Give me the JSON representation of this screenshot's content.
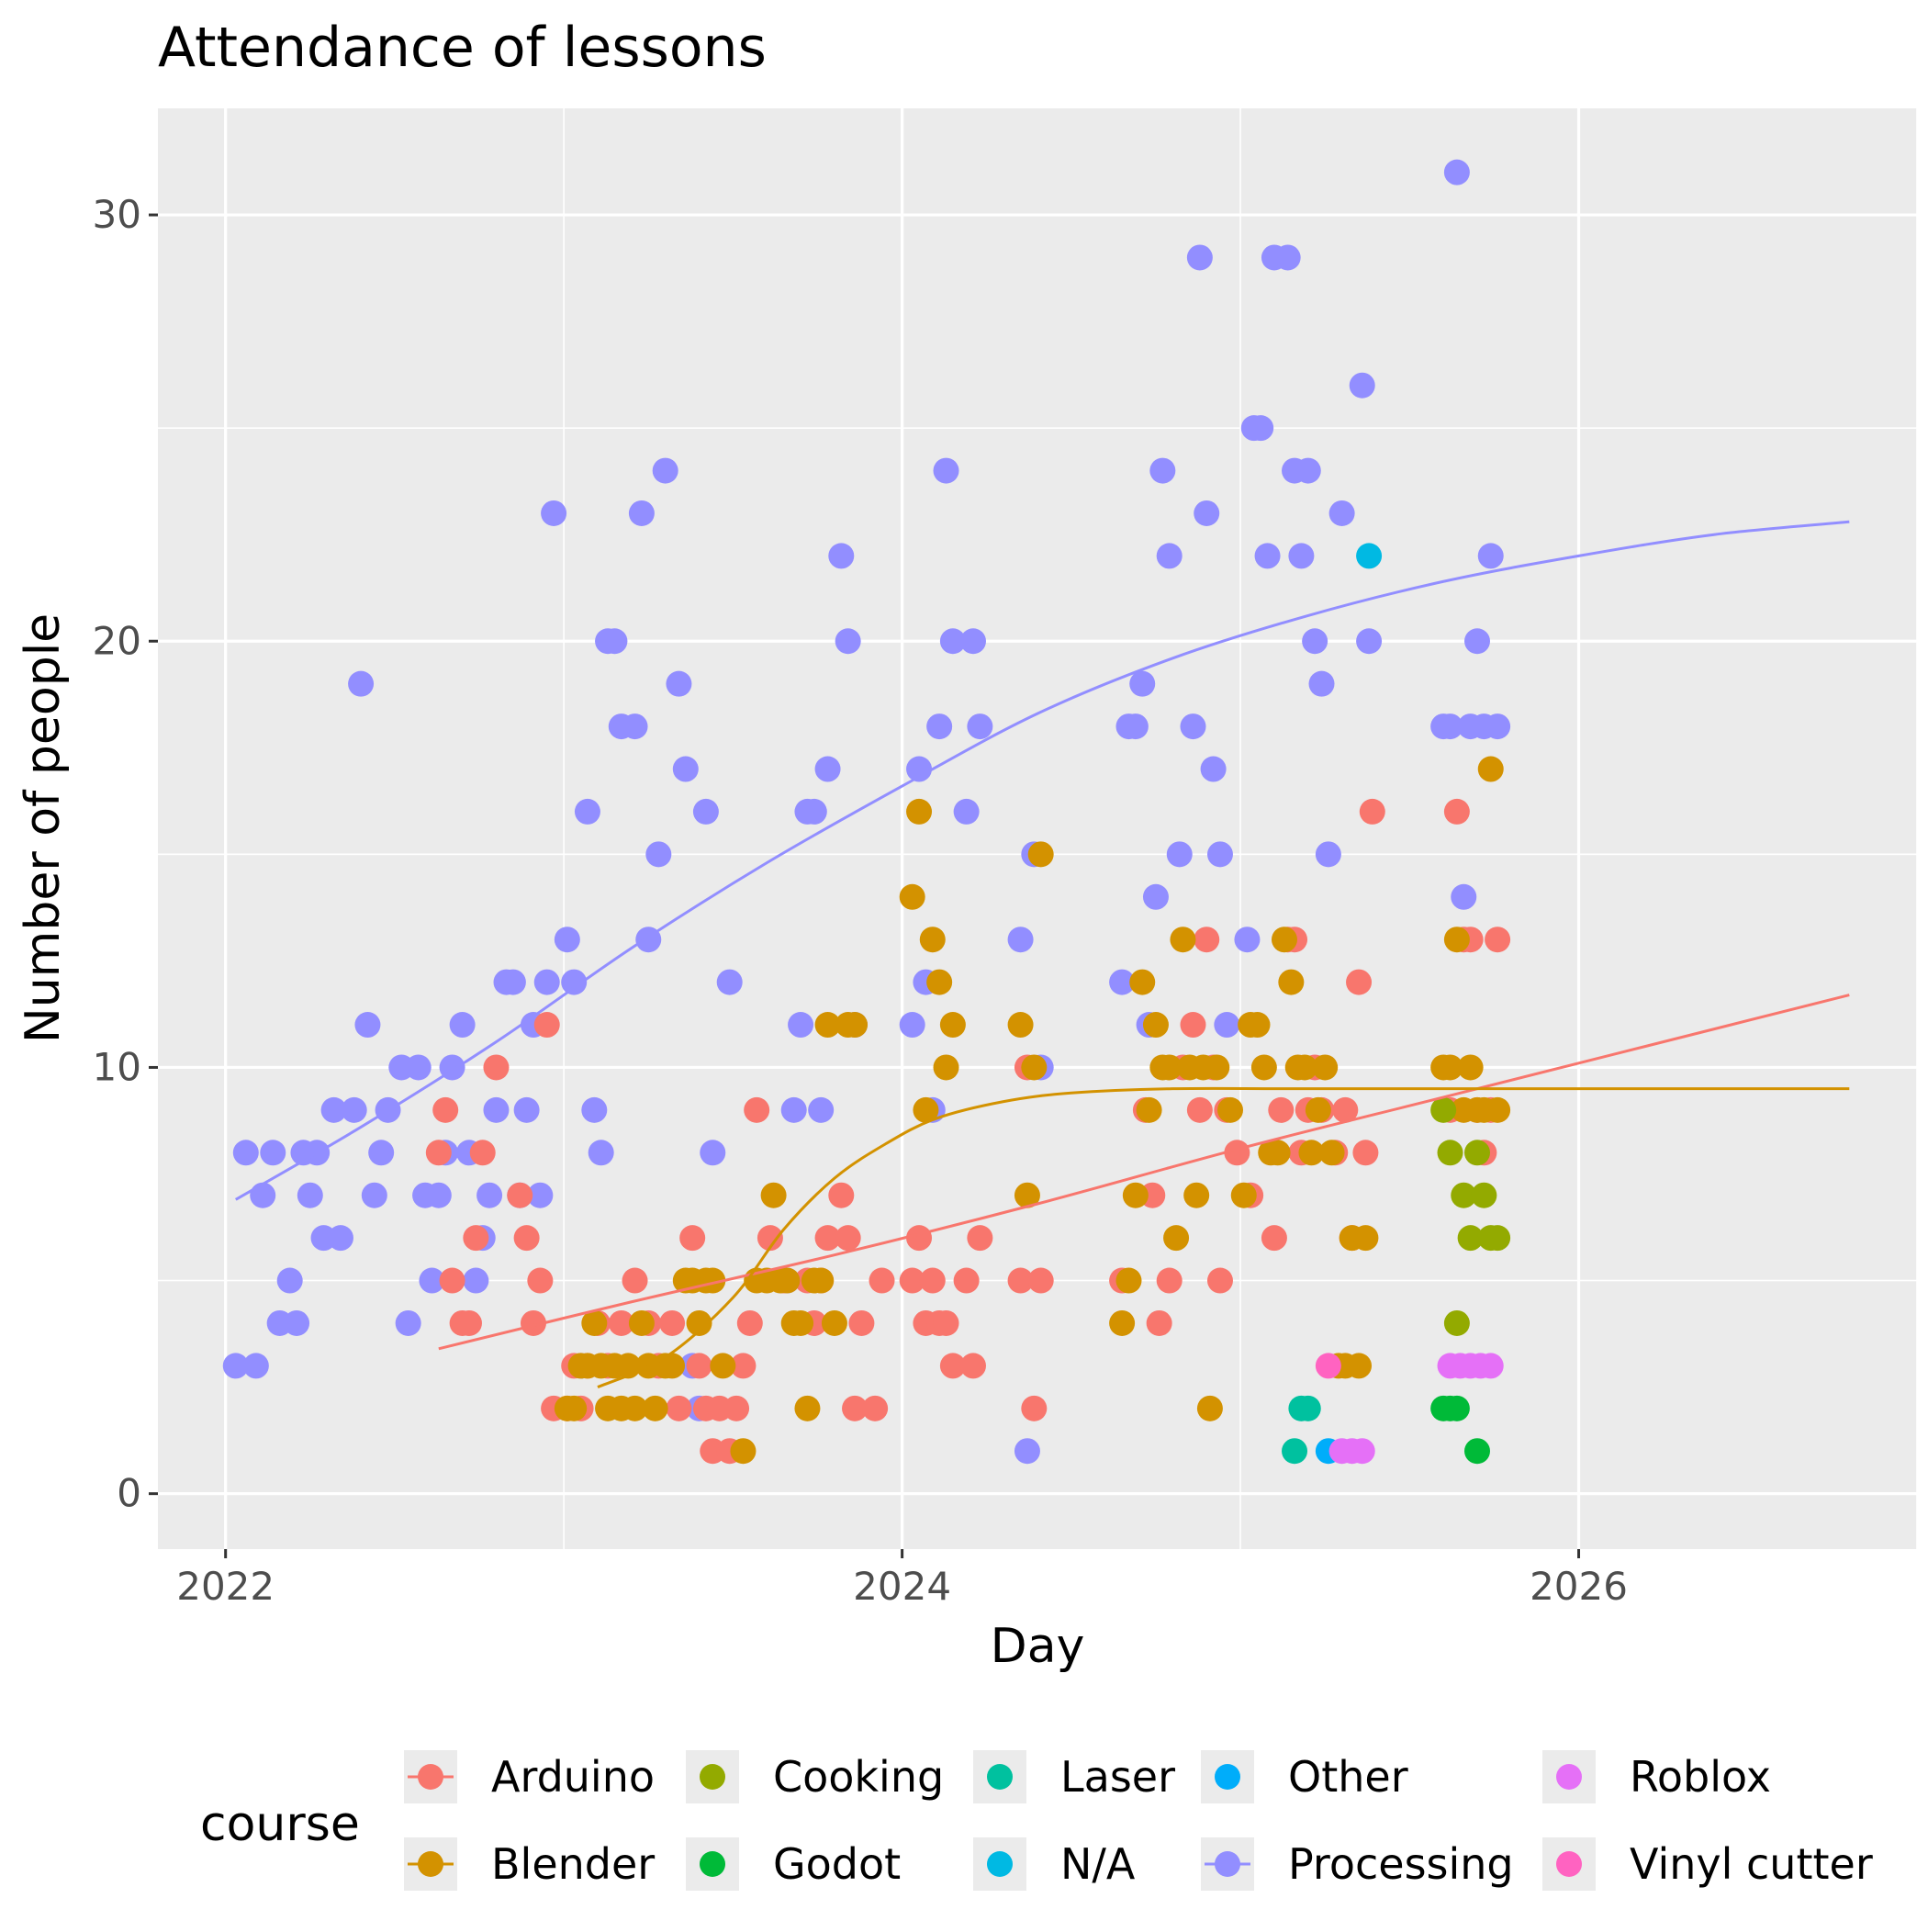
{
  "chart_data": {
    "type": "scatter",
    "title": "Attendance of lessons",
    "xlabel": "Day",
    "ylabel": "Number of people",
    "xlim": [
      2021.8,
      2027.0
    ],
    "ylim": [
      -1.3,
      32.5
    ],
    "x_ticks": [
      2022,
      2024,
      2026
    ],
    "x_tick_labels": [
      "2022",
      "2024",
      "2026"
    ],
    "y_ticks": [
      0,
      10,
      20,
      30
    ],
    "y_tick_labels": [
      "0",
      "10",
      "20",
      "30"
    ],
    "grid": true,
    "legend": {
      "title": "course",
      "placement": "bottom",
      "items": [
        {
          "label": "Arduino",
          "color": "#F8766D",
          "line": true
        },
        {
          "label": "Blender",
          "color": "#D39200",
          "line": true
        },
        {
          "label": "Cooking",
          "color": "#93AA00",
          "line": false
        },
        {
          "label": "Godot",
          "color": "#00BA38",
          "line": false
        },
        {
          "label": "Laser",
          "color": "#00C19F",
          "line": false
        },
        {
          "label": "N/A",
          "color": "#00B9E3",
          "line": false
        },
        {
          "label": "Other",
          "color": "#00ADFA",
          "line": false
        },
        {
          "label": "Processing",
          "color": "#928EFF",
          "line": true
        },
        {
          "label": "Roblox",
          "color": "#E570F7",
          "line": false
        },
        {
          "label": "Vinyl cutter",
          "color": "#FF63C1",
          "line": false
        }
      ]
    },
    "series": [
      {
        "name": "Processing",
        "color": "#928EFF",
        "x": [
          2022.03,
          2022.06,
          2022.09,
          2022.11,
          2022.14,
          2022.16,
          2022.19,
          2022.21,
          2022.23,
          2022.25,
          2022.27,
          2022.29,
          2022.32,
          2022.34,
          2022.38,
          2022.4,
          2022.42,
          2022.44,
          2022.46,
          2022.48,
          2022.52,
          2022.54,
          2022.57,
          2022.59,
          2022.61,
          2022.63,
          2022.65,
          2022.67,
          2022.7,
          2022.72,
          2022.74,
          2022.76,
          2022.78,
          2022.8,
          2022.83,
          2022.85,
          2022.87,
          2022.89,
          2022.91,
          2022.93,
          2022.95,
          2022.97,
          2023.01,
          2023.03,
          2023.05,
          2023.07,
          2023.09,
          2023.11,
          2023.13,
          2023.15,
          2023.17,
          2023.21,
          2023.23,
          2023.25,
          2023.28,
          2023.3,
          2023.34,
          2023.36,
          2023.38,
          2023.4,
          2023.42,
          2023.44,
          2023.49,
          2023.66,
          2023.68,
          2023.7,
          2023.72,
          2023.74,
          2023.76,
          2023.78,
          2023.82,
          2023.84,
          2023.86,
          2024.03,
          2024.05,
          2024.07,
          2024.09,
          2024.11,
          2024.13,
          2024.15,
          2024.19,
          2024.21,
          2024.23,
          2024.35,
          2024.37,
          2024.39,
          2024.41,
          2024.65,
          2024.67,
          2024.69,
          2024.71,
          2024.73,
          2024.75,
          2024.77,
          2024.79,
          2024.82,
          2024.86,
          2024.88,
          2024.9,
          2024.92,
          2024.94,
          2024.96,
          2025.02,
          2025.04,
          2025.06,
          2025.08,
          2025.1,
          2025.14,
          2025.16,
          2025.18,
          2025.2,
          2025.22,
          2025.24,
          2025.26,
          2025.3,
          2025.36,
          2025.38,
          2025.6,
          2025.62,
          2025.64,
          2025.66,
          2025.68,
          2025.7,
          2025.72,
          2025.74,
          2025.76
        ],
        "y": [
          3,
          8,
          3,
          7,
          8,
          4,
          5,
          4,
          8,
          7,
          8,
          6,
          9,
          6,
          9,
          19,
          11,
          7,
          8,
          9,
          10,
          4,
          10,
          7,
          5,
          7,
          8,
          10,
          11,
          8,
          5,
          6,
          7,
          9,
          12,
          12,
          7,
          9,
          11,
          7,
          12,
          23,
          13,
          12,
          3,
          16,
          9,
          8,
          20,
          20,
          18,
          18,
          23,
          13,
          15,
          24,
          19,
          17,
          3,
          2,
          16,
          8,
          12,
          5,
          9,
          11,
          16,
          16,
          9,
          17,
          22,
          20,
          11,
          11,
          17,
          12,
          9,
          18,
          24,
          20,
          16,
          20,
          18,
          13,
          1,
          15,
          10,
          12,
          18,
          18,
          19,
          11,
          14,
          24,
          22,
          15,
          18,
          29,
          23,
          17,
          15,
          11,
          13,
          25,
          25,
          22,
          29,
          29,
          24,
          22,
          24,
          20,
          19,
          15,
          23,
          26,
          20,
          18,
          18,
          31,
          14,
          18,
          20,
          18,
          22,
          18
        ]
      },
      {
        "name": "Arduino",
        "color": "#F8766D",
        "x": [
          2022.63,
          2022.65,
          2022.67,
          2022.7,
          2022.72,
          2022.74,
          2022.76,
          2022.8,
          2022.87,
          2022.89,
          2022.91,
          2022.93,
          2022.95,
          2022.97,
          2023.01,
          2023.03,
          2023.05,
          2023.07,
          2023.1,
          2023.13,
          2023.17,
          2023.21,
          2023.25,
          2023.28,
          2023.32,
          2023.34,
          2023.38,
          2023.4,
          2023.42,
          2023.44,
          2023.46,
          2023.49,
          2023.51,
          2023.53,
          2023.55,
          2023.57,
          2023.61,
          2023.65,
          2023.72,
          2023.74,
          2023.76,
          2023.78,
          2023.82,
          2023.84,
          2023.86,
          2023.88,
          2023.92,
          2023.94,
          2024.03,
          2024.05,
          2024.07,
          2024.09,
          2024.11,
          2024.13,
          2024.15,
          2024.19,
          2024.21,
          2024.23,
          2024.35,
          2024.37,
          2024.39,
          2024.41,
          2024.65,
          2024.72,
          2024.74,
          2024.76,
          2024.79,
          2024.83,
          2024.86,
          2024.88,
          2024.9,
          2024.92,
          2024.94,
          2024.96,
          2024.99,
          2025.03,
          2025.1,
          2025.12,
          2025.14,
          2025.16,
          2025.18,
          2025.2,
          2025.22,
          2025.24,
          2025.28,
          2025.31,
          2025.33,
          2025.35,
          2025.37,
          2025.39,
          2025.62,
          2025.64,
          2025.66,
          2025.68,
          2025.7,
          2025.72,
          2025.74,
          2025.76
        ],
        "y": [
          8,
          9,
          5,
          4,
          4,
          6,
          8,
          10,
          7,
          6,
          4,
          5,
          11,
          2,
          2,
          3,
          2,
          3,
          4,
          3,
          4,
          5,
          4,
          3,
          4,
          2,
          6,
          3,
          2,
          1,
          2,
          1,
          2,
          3,
          4,
          9,
          6,
          5,
          5,
          4,
          5,
          6,
          7,
          6,
          2,
          4,
          2,
          5,
          5,
          6,
          4,
          5,
          4,
          4,
          3,
          5,
          3,
          6,
          5,
          10,
          2,
          5,
          5,
          9,
          7,
          4,
          5,
          10,
          11,
          9,
          13,
          10,
          5,
          9,
          8,
          7,
          6,
          9,
          13,
          13,
          8,
          9,
          10,
          9,
          8,
          9,
          6,
          12,
          8,
          16,
          9,
          16,
          13,
          13,
          9,
          8,
          9,
          13
        ]
      },
      {
        "name": "Blender",
        "color": "#D39200",
        "x": [
          2023.01,
          2023.03,
          2023.05,
          2023.07,
          2023.09,
          2023.11,
          2023.13,
          2023.15,
          2023.17,
          2023.19,
          2023.21,
          2023.23,
          2023.25,
          2023.27,
          2023.3,
          2023.32,
          2023.36,
          2023.38,
          2023.4,
          2023.42,
          2023.44,
          2023.47,
          2023.53,
          2023.57,
          2023.6,
          2023.62,
          2023.64,
          2023.66,
          2023.68,
          2023.7,
          2023.72,
          2023.74,
          2023.76,
          2023.78,
          2023.8,
          2023.84,
          2023.86,
          2024.03,
          2024.05,
          2024.07,
          2024.09,
          2024.11,
          2024.13,
          2024.15,
          2024.35,
          2024.37,
          2024.39,
          2024.41,
          2024.65,
          2024.67,
          2024.69,
          2024.71,
          2024.73,
          2024.75,
          2024.77,
          2024.79,
          2024.81,
          2024.83,
          2024.85,
          2024.87,
          2024.89,
          2024.91,
          2024.93,
          2024.97,
          2025.01,
          2025.03,
          2025.05,
          2025.07,
          2025.09,
          2025.11,
          2025.13,
          2025.15,
          2025.17,
          2025.19,
          2025.21,
          2025.23,
          2025.25,
          2025.27,
          2025.29,
          2025.31,
          2025.33,
          2025.35,
          2025.37,
          2025.6,
          2025.62,
          2025.64,
          2025.66,
          2025.68,
          2025.7,
          2025.72,
          2025.74,
          2025.76
        ],
        "y": [
          2,
          2,
          3,
          3,
          4,
          3,
          2,
          3,
          2,
          3,
          2,
          4,
          3,
          2,
          3,
          3,
          5,
          5,
          4,
          5,
          5,
          3,
          1,
          5,
          5,
          7,
          5,
          5,
          4,
          4,
          2,
          5,
          5,
          11,
          4,
          11,
          11,
          14,
          16,
          9,
          13,
          12,
          10,
          11,
          11,
          7,
          10,
          15,
          4,
          5,
          7,
          12,
          9,
          11,
          10,
          10,
          6,
          13,
          10,
          7,
          10,
          2,
          10,
          9,
          7,
          11,
          11,
          10,
          8,
          8,
          13,
          12,
          10,
          10,
          8,
          9,
          10,
          8,
          3,
          3,
          6,
          3,
          6,
          10,
          10,
          13,
          9,
          10,
          9,
          9,
          17,
          9
        ]
      },
      {
        "name": "Cooking",
        "color": "#93AA00",
        "x": [
          2025.6,
          2025.62,
          2025.64,
          2025.66,
          2025.68,
          2025.7,
          2025.72,
          2025.74,
          2025.76
        ],
        "y": [
          9,
          8,
          4,
          7,
          6,
          8,
          7,
          6,
          6
        ]
      },
      {
        "name": "Godot",
        "color": "#00BA38",
        "x": [
          2025.6,
          2025.62,
          2025.64,
          2025.7
        ],
        "y": [
          2,
          2,
          2,
          1
        ]
      },
      {
        "name": "Laser",
        "color": "#00C19F",
        "x": [
          2025.16,
          2025.18,
          2025.2
        ],
        "y": [
          1,
          2,
          2
        ]
      },
      {
        "name": "N/A",
        "color": "#00B9E3",
        "x": [
          2025.38
        ],
        "y": [
          22
        ]
      },
      {
        "name": "Other",
        "color": "#00ADFA",
        "x": [
          2025.26
        ],
        "y": [
          1
        ]
      },
      {
        "name": "Roblox",
        "color": "#E570F7",
        "x": [
          2025.3,
          2025.33,
          2025.36,
          2025.62,
          2025.65,
          2025.68,
          2025.71,
          2025.74
        ],
        "y": [
          1,
          1,
          1,
          3,
          3,
          3,
          3,
          3
        ]
      },
      {
        "name": "Vinyl cutter",
        "color": "#FF63C1",
        "x": [
          2025.26
        ],
        "y": [
          3
        ]
      }
    ],
    "trend_lines": [
      {
        "name": "Processing",
        "color": "#928EFF",
        "x": [
          2022.03,
          2022.4,
          2022.8,
          2023.2,
          2023.6,
          2024.0,
          2024.4,
          2024.8,
          2025.2,
          2025.6,
          2026.0,
          2026.4,
          2026.8
        ],
        "y": [
          6.9,
          8.6,
          10.6,
          12.8,
          14.8,
          16.6,
          18.3,
          19.6,
          20.6,
          21.4,
          22.0,
          22.5,
          22.8
        ]
      },
      {
        "name": "Arduino",
        "color": "#F8766D",
        "x": [
          2022.63,
          2023.2,
          2023.8,
          2024.4,
          2025.0,
          2025.6,
          2026.2,
          2026.8
        ],
        "y": [
          3.4,
          4.5,
          5.6,
          6.8,
          8.1,
          9.3,
          10.5,
          11.7
        ]
      },
      {
        "name": "Blender",
        "color": "#D39200",
        "x": [
          2023.1,
          2023.3,
          2023.5,
          2023.65,
          2023.8,
          2023.95,
          2024.1,
          2024.3,
          2024.5,
          2024.8,
          2025.2,
          2026.0,
          2026.8
        ],
        "y": [
          2.5,
          3.2,
          4.6,
          6.2,
          7.4,
          8.2,
          8.8,
          9.2,
          9.4,
          9.5,
          9.5,
          9.5,
          9.5
        ]
      }
    ]
  }
}
